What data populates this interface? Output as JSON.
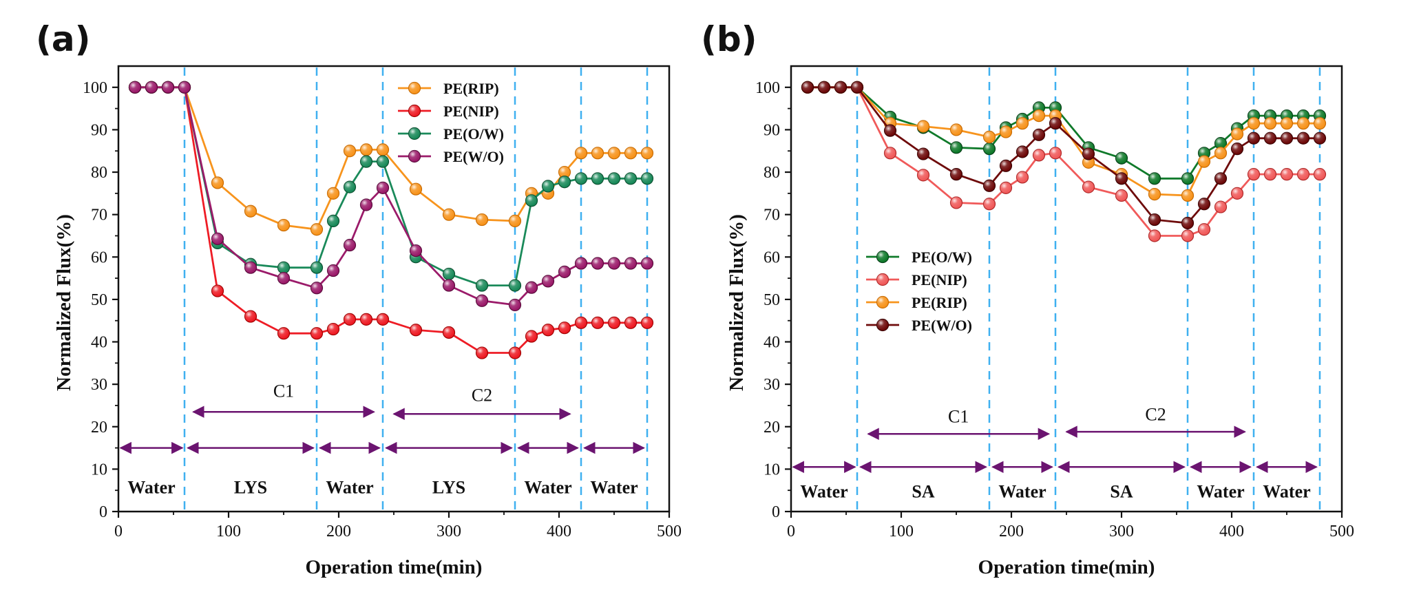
{
  "chart_data": [
    {
      "type": "line",
      "panel_label": "(a)",
      "xlabel": "Operation time(min)",
      "ylabel": "Normalized Flux(%)",
      "xlim": [
        0,
        500
      ],
      "ylim": [
        0,
        105
      ],
      "xticks": [
        0,
        100,
        200,
        300,
        400,
        500
      ],
      "yticks": [
        0,
        10,
        20,
        30,
        40,
        50,
        60,
        70,
        80,
        90,
        100
      ],
      "vlines": [
        60,
        180,
        240,
        360,
        420,
        480
      ],
      "legend_position": "top-center",
      "series": [
        {
          "name": "PE(RIP)",
          "color": "#f7941d",
          "edge": "#c86a00",
          "x": [
            15,
            30,
            45,
            60,
            90,
            120,
            150,
            180,
            195,
            210,
            225,
            240,
            270,
            300,
            330,
            360,
            375,
            390,
            405,
            420,
            435,
            450,
            465,
            480
          ],
          "y": [
            100,
            100,
            100,
            100,
            77.5,
            70.8,
            67.5,
            66.5,
            75,
            85,
            85.3,
            85.3,
            76,
            70,
            68.8,
            68.5,
            75,
            75,
            80,
            84.5,
            84.5,
            84.5,
            84.5,
            84.5
          ]
        },
        {
          "name": "PE(NIP)",
          "color": "#ee1c25",
          "edge": "#a00000",
          "x": [
            15,
            30,
            45,
            60,
            90,
            120,
            150,
            180,
            195,
            210,
            225,
            240,
            270,
            300,
            330,
            360,
            375,
            390,
            405,
            420,
            435,
            450,
            465,
            480
          ],
          "y": [
            100,
            100,
            100,
            100,
            52,
            46,
            42,
            42,
            43,
            45.3,
            45.3,
            45.3,
            42.8,
            42.2,
            37.4,
            37.4,
            41.3,
            42.8,
            43.3,
            44.5,
            44.5,
            44.5,
            44.5,
            44.5
          ]
        },
        {
          "name": "PE(O/W)",
          "color": "#1a8a5a",
          "edge": "#0a5030",
          "x": [
            15,
            30,
            45,
            60,
            90,
            120,
            150,
            180,
            195,
            210,
            225,
            240,
            270,
            300,
            330,
            360,
            375,
            390,
            405,
            420,
            435,
            450,
            465,
            480
          ],
          "y": [
            100,
            100,
            100,
            100,
            63.3,
            58.3,
            57.5,
            57.5,
            68.5,
            76.5,
            82.5,
            82.5,
            60,
            56,
            53.3,
            53.3,
            73.3,
            76.7,
            77.7,
            78.5,
            78.5,
            78.5,
            78.5,
            78.5
          ]
        },
        {
          "name": "PE(W/O)",
          "color": "#9b1b6a",
          "edge": "#5a0a3c",
          "x": [
            15,
            30,
            45,
            60,
            90,
            120,
            150,
            180,
            195,
            210,
            225,
            240,
            270,
            300,
            330,
            360,
            375,
            390,
            405,
            420,
            435,
            450,
            465,
            480
          ],
          "y": [
            100,
            100,
            100,
            100,
            64.3,
            57.5,
            55,
            52.7,
            56.8,
            62.8,
            72.3,
            76.3,
            61.5,
            53.3,
            49.7,
            48.7,
            52.8,
            54.3,
            56.5,
            58.5,
            58.5,
            58.5,
            58.5,
            58.5
          ]
        }
      ],
      "phase_arrows": [
        {
          "label": "Water",
          "x1": 2,
          "x2": 58
        },
        {
          "label": "LYS",
          "x1": 63,
          "x2": 177
        },
        {
          "label": "Water",
          "x1": 183,
          "x2": 237
        },
        {
          "label": "LYS",
          "x1": 243,
          "x2": 357
        },
        {
          "label": "Water",
          "x1": 363,
          "x2": 417
        },
        {
          "label": "Water",
          "x1": 423,
          "x2": 477
        }
      ],
      "phase_y": 15,
      "phase_label_y": 5.8,
      "cycle_arrows": [
        {
          "label": "C1",
          "x1": 68,
          "x2": 232,
          "y": 23.5,
          "label_y": 28.5
        },
        {
          "label": "C2",
          "x1": 250,
          "x2": 410,
          "y": 23,
          "label_y": 27.5
        }
      ]
    },
    {
      "type": "line",
      "panel_label": "(b)",
      "xlabel": "Operation time(min)",
      "ylabel": "Normalized Flux(%)",
      "xlim": [
        0,
        500
      ],
      "ylim": [
        0,
        105
      ],
      "xticks": [
        0,
        100,
        200,
        300,
        400,
        500
      ],
      "yticks": [
        0,
        10,
        20,
        30,
        40,
        50,
        60,
        70,
        80,
        90,
        100
      ],
      "vlines": [
        60,
        180,
        240,
        360,
        420,
        480
      ],
      "legend_position": "center-left",
      "series": [
        {
          "name": "PE(O/W)",
          "color": "#0f7a2a",
          "edge": "#064018",
          "x": [
            15,
            30,
            45,
            60,
            90,
            120,
            150,
            180,
            195,
            210,
            225,
            240,
            270,
            300,
            330,
            360,
            375,
            390,
            405,
            420,
            435,
            450,
            465,
            480
          ],
          "y": [
            100,
            100,
            100,
            100,
            93,
            90.5,
            85.8,
            85.5,
            90.5,
            92.5,
            95.2,
            95.2,
            85.8,
            83.3,
            78.5,
            78.5,
            84.5,
            86.8,
            90.3,
            93.3,
            93.3,
            93.3,
            93.3,
            93.3
          ]
        },
        {
          "name": "PE(NIP)",
          "color": "#f05a5a",
          "edge": "#b02828",
          "x": [
            15,
            30,
            45,
            60,
            90,
            120,
            150,
            180,
            195,
            210,
            225,
            240,
            270,
            300,
            330,
            360,
            375,
            390,
            405,
            420,
            435,
            450,
            465,
            480
          ],
          "y": [
            100,
            100,
            100,
            100,
            84.5,
            79.3,
            72.8,
            72.5,
            76.3,
            78.8,
            84,
            84.5,
            76.5,
            74.5,
            65,
            65,
            66.5,
            71.8,
            75,
            79.5,
            79.5,
            79.5,
            79.5,
            79.5
          ]
        },
        {
          "name": "PE(RIP)",
          "color": "#f7941d",
          "edge": "#c86a00",
          "x": [
            15,
            30,
            45,
            60,
            90,
            120,
            150,
            180,
            195,
            210,
            225,
            240,
            270,
            300,
            330,
            360,
            375,
            390,
            405,
            420,
            435,
            450,
            465,
            480
          ],
          "y": [
            100,
            100,
            100,
            100,
            91.5,
            90.8,
            90,
            88.3,
            89.5,
            91.5,
            93.3,
            93.3,
            82.3,
            79.5,
            74.8,
            74.5,
            82.5,
            84.5,
            89,
            91.5,
            91.5,
            91.5,
            91.5,
            91.5
          ]
        },
        {
          "name": "PE(W/O)",
          "color": "#6e0a0a",
          "edge": "#3a0000",
          "x": [
            15,
            30,
            45,
            60,
            90,
            120,
            150,
            180,
            195,
            210,
            225,
            240,
            270,
            300,
            330,
            360,
            375,
            390,
            405,
            420,
            435,
            450,
            465,
            480
          ],
          "y": [
            100,
            100,
            100,
            100,
            89.8,
            84.3,
            79.5,
            76.8,
            81.5,
            84.8,
            88.8,
            91.5,
            84.3,
            78.5,
            68.8,
            68,
            72.5,
            78.5,
            85.5,
            88,
            88,
            88,
            88,
            88
          ]
        }
      ],
      "phase_arrows": [
        {
          "label": "Water",
          "x1": 2,
          "x2": 58
        },
        {
          "label": "SA",
          "x1": 63,
          "x2": 177
        },
        {
          "label": "Water",
          "x1": 183,
          "x2": 237
        },
        {
          "label": "SA",
          "x1": 243,
          "x2": 357
        },
        {
          "label": "Water",
          "x1": 363,
          "x2": 417
        },
        {
          "label": "Water",
          "x1": 423,
          "x2": 477
        }
      ],
      "phase_y": 10.5,
      "phase_label_y": 4.8,
      "cycle_arrows": [
        {
          "label": "C1",
          "x1": 70,
          "x2": 234,
          "y": 18.3,
          "label_y": 22.5
        },
        {
          "label": "C2",
          "x1": 250,
          "x2": 412,
          "y": 18.8,
          "label_y": 23
        }
      ]
    }
  ]
}
